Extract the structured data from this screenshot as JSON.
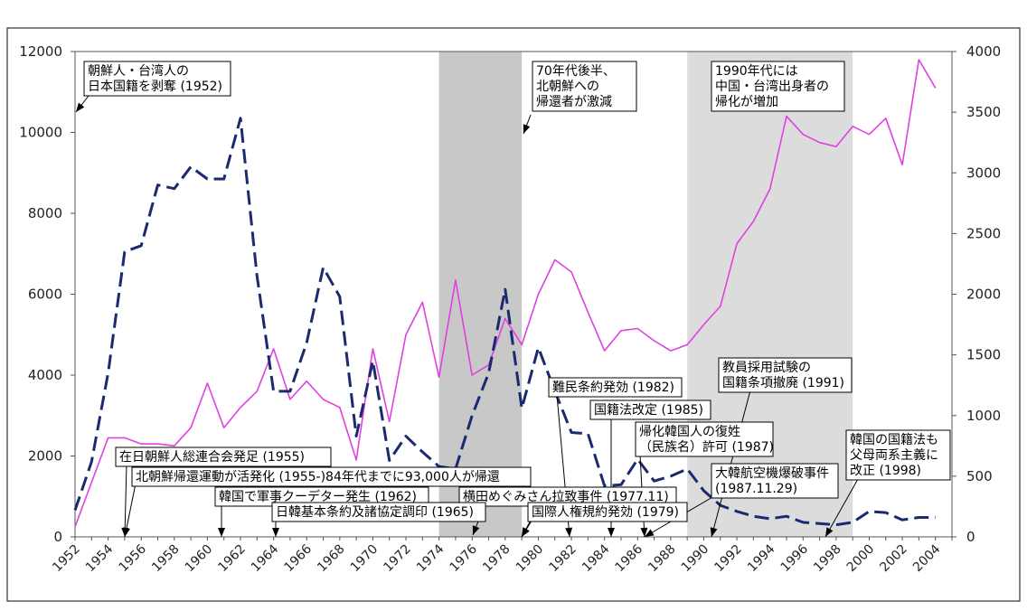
{
  "chart_data": {
    "type": "line",
    "x_start": 1952,
    "x_end": 2005,
    "x_tick_labels": [
      "1952",
      "1954",
      "1956",
      "1958",
      "1960",
      "1962",
      "1964",
      "1966",
      "1968",
      "1970",
      "1972",
      "1974",
      "1976",
      "1978",
      "1980",
      "1982",
      "1984",
      "1986",
      "1988",
      "1990",
      "1992",
      "1994",
      "1996",
      "1998",
      "2000",
      "2002",
      "2004"
    ],
    "y_left": {
      "min": 0,
      "max": 12000,
      "ticks": [
        "0",
        "2000",
        "4000",
        "6000",
        "8000",
        "10000",
        "12000"
      ]
    },
    "y_right": {
      "min": 0,
      "max": 4000,
      "ticks": [
        "0",
        "500",
        "1000",
        "1500",
        "2000",
        "2500",
        "3000",
        "3500",
        "4000"
      ]
    },
    "grid": false,
    "shaded_periods": [
      [
        1974,
        1979
      ],
      [
        1989,
        1999
      ]
    ],
    "series": [
      {
        "axis": "left",
        "color": "#e040e0",
        "style": "solid",
        "values": [
          250,
          1350,
          2450,
          2450,
          2300,
          2300,
          2250,
          2700,
          3800,
          2700,
          3200,
          3600,
          4650,
          3400,
          3850,
          3400,
          3200,
          1900,
          4650,
          2850,
          5000,
          5800,
          3950,
          6350,
          4000,
          4250,
          5400,
          4750,
          6000,
          6850,
          6550,
          5550,
          4600,
          5100,
          5150,
          4850,
          4600,
          4750,
          5250,
          5700,
          7250,
          7800,
          8600,
          10400,
          9950,
          9750,
          9650,
          10150,
          9950,
          10350,
          9200,
          11800,
          11100
        ]
      },
      {
        "axis": "right",
        "color": "#1a2a6e",
        "style": "dashed",
        "values": [
          220,
          620,
          1350,
          2350,
          2400,
          2900,
          2870,
          3050,
          2950,
          2950,
          3450,
          2150,
          1200,
          1200,
          1600,
          2220,
          1980,
          830,
          1450,
          630,
          830,
          700,
          580,
          560,
          1000,
          1350,
          2040,
          1060,
          1560,
          1200,
          860,
          850,
          420,
          430,
          640,
          460,
          500,
          560,
          380,
          260,
          210,
          170,
          150,
          170,
          120,
          110,
          100,
          120,
          210,
          200,
          140,
          160,
          160
        ]
      }
    ],
    "annotations": [
      {
        "id": "a1952",
        "lines": [
          "朝鮮人・台湾人の",
          "日本国籍を剥奪 (1952)"
        ]
      },
      {
        "id": "a70s",
        "lines": [
          "70年代後半、",
          "北朝鮮への",
          "帰還者が激減"
        ]
      },
      {
        "id": "a1990s",
        "lines": [
          "1990年代には",
          "中国・台湾出身者の",
          "帰化が増加"
        ]
      },
      {
        "id": "a1982",
        "lines": [
          "難民条約発効 (1982)"
        ]
      },
      {
        "id": "a1991",
        "lines": [
          "教員採用試験の",
          "国籍条項撤廃 (1991)"
        ]
      },
      {
        "id": "a1985",
        "lines": [
          "国籍法改定 (1985)"
        ]
      },
      {
        "id": "a1987a",
        "lines": [
          "帰化韓国人の復姓",
          "（民族名）許可 (1987)"
        ]
      },
      {
        "id": "a1998",
        "lines": [
          "韓国の国籍法も",
          "父母両系主義に",
          "改正 (1998)"
        ]
      },
      {
        "id": "a1987b",
        "lines": [
          "大韓航空機爆破事件",
          "(1987.11.29)"
        ]
      },
      {
        "id": "a1955a",
        "lines": [
          "在日朝鮮人総連合会発足 (1955)"
        ]
      },
      {
        "id": "a1955b",
        "lines": [
          "北朝鮮帰還運動が活発化 (1955-)84年代までに93,000人が帰還"
        ]
      },
      {
        "id": "a1962",
        "lines": [
          "韓国で軍事クーデター発生 (1962)"
        ]
      },
      {
        "id": "a1977",
        "lines": [
          "横田めぐみさん拉致事件 (1977.11)"
        ]
      },
      {
        "id": "a1965",
        "lines": [
          "日韓基本条約及諸協定調印 (1965)"
        ]
      },
      {
        "id": "a1979",
        "lines": [
          "国際人権規約発効 (1979)"
        ]
      }
    ]
  }
}
